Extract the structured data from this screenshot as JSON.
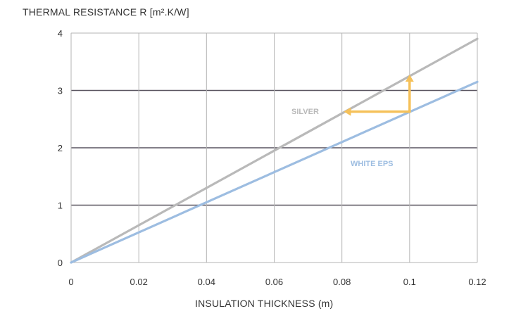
{
  "chart_data": {
    "type": "line",
    "title": "",
    "ylabel": "THERMAL RESISTANCE R [m².K/W]",
    "xlabel": "INSULATION THICKNESS (m)",
    "xlim": [
      0,
      0.12
    ],
    "ylim": [
      0,
      4
    ],
    "x_ticks": [
      0,
      0.02,
      0.04,
      0.06,
      0.08,
      0.1,
      0.12
    ],
    "x_tick_labels": [
      "0",
      "0.02",
      "0.04",
      "0.06",
      "0.08",
      "0.1",
      "0.12"
    ],
    "y_ticks": [
      0,
      1,
      2,
      3,
      4
    ],
    "y_tick_labels": [
      "0",
      "1",
      "2",
      "3",
      "4"
    ],
    "grid": true,
    "series": [
      {
        "name": "SILVER",
        "color": "#b9b9b9",
        "x": [
          0,
          0.12
        ],
        "y": [
          0,
          3.9
        ]
      },
      {
        "name": "WHITE EPS",
        "color": "#9dbde1",
        "x": [
          0,
          0.12
        ],
        "y": [
          0,
          3.15
        ]
      }
    ],
    "annotation": {
      "color": "#f5c15a",
      "arrow_up": {
        "x": 0.1,
        "from_y": 2.63,
        "to_y": 3.25
      },
      "arrow_left": {
        "y": 2.63,
        "from_x": 0.1,
        "to_x": 0.081
      }
    }
  }
}
